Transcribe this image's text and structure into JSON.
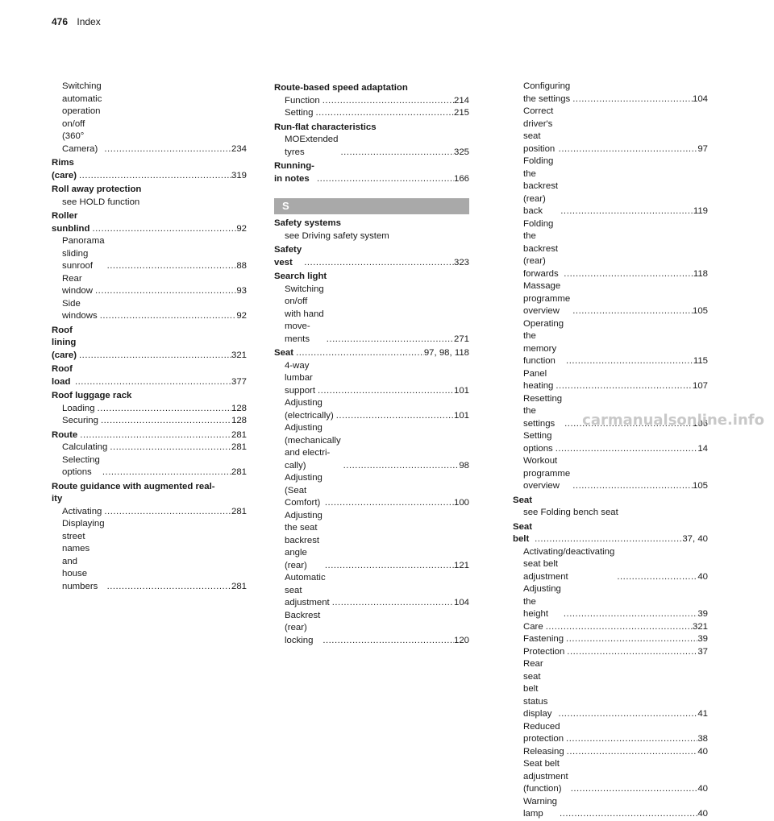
{
  "header": {
    "page_number": "476",
    "section": "Index"
  },
  "columns": [
    [
      {
        "type": "sub",
        "label": "Switching automatic operation\non/off (360° Camera)",
        "page": "234"
      },
      {
        "type": "main",
        "label": "Rims (care)",
        "page": "319"
      },
      {
        "type": "main",
        "label": "Roll away protection",
        "page": ""
      },
      {
        "type": "sub",
        "label": "see HOLD function",
        "page": ""
      },
      {
        "type": "main",
        "label": "Roller sunblind",
        "page": "92"
      },
      {
        "type": "sub",
        "label": "Panorama sliding sunroof",
        "page": "88"
      },
      {
        "type": "sub",
        "label": "Rear window",
        "page": "93"
      },
      {
        "type": "sub",
        "label": "Side windows",
        "page": "92"
      },
      {
        "type": "main",
        "label": "Roof lining (care)",
        "page": "321"
      },
      {
        "type": "main",
        "label": "Roof load",
        "page": "377"
      },
      {
        "type": "main",
        "label": "Roof luggage rack",
        "page": ""
      },
      {
        "type": "sub",
        "label": "Loading",
        "page": "128"
      },
      {
        "type": "sub",
        "label": "Securing",
        "page": "128"
      },
      {
        "type": "main",
        "label": "Route",
        "page": "281"
      },
      {
        "type": "sub",
        "label": "Calculating",
        "page": "281"
      },
      {
        "type": "sub",
        "label": "Selecting options",
        "page": "281"
      },
      {
        "type": "main",
        "label": "Route guidance with augmented real-\nity",
        "page": ""
      },
      {
        "type": "sub",
        "label": "Activating",
        "page": "281"
      },
      {
        "type": "sub",
        "label": "Displaying street names and house\nnumbers",
        "page": "281"
      }
    ],
    [
      {
        "type": "main",
        "label": "Route-based speed adaptation",
        "page": ""
      },
      {
        "type": "sub",
        "label": "Function",
        "page": "214"
      },
      {
        "type": "sub",
        "label": "Setting",
        "page": "215"
      },
      {
        "type": "main",
        "label": "Run-flat characteristics",
        "page": ""
      },
      {
        "type": "sub",
        "label": "MOExtended tyres",
        "page": "325"
      },
      {
        "type": "main",
        "label": "Running-in notes",
        "page": "166"
      },
      {
        "type": "letter",
        "label": "S"
      },
      {
        "type": "main",
        "label": "Safety systems",
        "page": ""
      },
      {
        "type": "sub",
        "label": "see Driving safety system",
        "page": ""
      },
      {
        "type": "main",
        "label": "Safety vest",
        "page": "323"
      },
      {
        "type": "main",
        "label": "Search light",
        "page": ""
      },
      {
        "type": "sub",
        "label": "Switching on/off with hand move-\nments",
        "page": "271"
      },
      {
        "type": "main",
        "label": "Seat",
        "page": "97, 98, 118"
      },
      {
        "type": "sub",
        "label": "4-way lumbar support",
        "page": "101"
      },
      {
        "type": "sub",
        "label": "Adjusting (electrically)",
        "page": "101"
      },
      {
        "type": "sub",
        "label": "Adjusting (mechanically and electri-\ncally)",
        "page": "98"
      },
      {
        "type": "sub",
        "label": "Adjusting (Seat Comfort)",
        "page": "100"
      },
      {
        "type": "sub",
        "label": "Adjusting the seat backrest angle\n(rear)",
        "page": "121"
      },
      {
        "type": "sub",
        "label": "Automatic seat adjustment",
        "page": "104"
      },
      {
        "type": "sub",
        "label": "Backrest (rear) locking",
        "page": "120"
      }
    ],
    [
      {
        "type": "sub",
        "label": "Configuring the settings",
        "page": "104"
      },
      {
        "type": "sub",
        "label": "Correct driver's seat position",
        "page": "97"
      },
      {
        "type": "sub",
        "label": "Folding the backrest (rear) back",
        "page": "119"
      },
      {
        "type": "sub",
        "label": "Folding the backrest (rear) forwards",
        "page": "118"
      },
      {
        "type": "sub",
        "label": "Massage programme overview",
        "page": "105"
      },
      {
        "type": "sub",
        "label": "Operating the memory function",
        "page": "115"
      },
      {
        "type": "sub",
        "label": "Panel heating",
        "page": "107"
      },
      {
        "type": "sub",
        "label": "Resetting the settings",
        "page": "106"
      },
      {
        "type": "sub",
        "label": "Setting options",
        "page": "14"
      },
      {
        "type": "sub",
        "label": "Workout programme overview",
        "page": "105"
      },
      {
        "type": "main",
        "label": "Seat",
        "page": ""
      },
      {
        "type": "sub",
        "label": "see Folding bench seat",
        "page": ""
      },
      {
        "type": "main",
        "label": "Seat belt",
        "page": "37, 40"
      },
      {
        "type": "sub",
        "label": "Activating/deactivating seat belt\nadjustment",
        "page": "40"
      },
      {
        "type": "sub",
        "label": "Adjusting the height",
        "page": "39"
      },
      {
        "type": "sub",
        "label": "Care",
        "page": "321"
      },
      {
        "type": "sub",
        "label": "Fastening",
        "page": "39"
      },
      {
        "type": "sub",
        "label": "Protection",
        "page": "37"
      },
      {
        "type": "sub",
        "label": "Rear seat belt status display",
        "page": "41"
      },
      {
        "type": "sub",
        "label": "Reduced protection",
        "page": "38"
      },
      {
        "type": "sub",
        "label": "Releasing",
        "page": "40"
      },
      {
        "type": "sub",
        "label": "Seat belt adjustment (function)",
        "page": "40"
      },
      {
        "type": "sub",
        "label": "Warning lamp",
        "page": "40"
      }
    ]
  ],
  "watermark": "carmanualsonline.info"
}
